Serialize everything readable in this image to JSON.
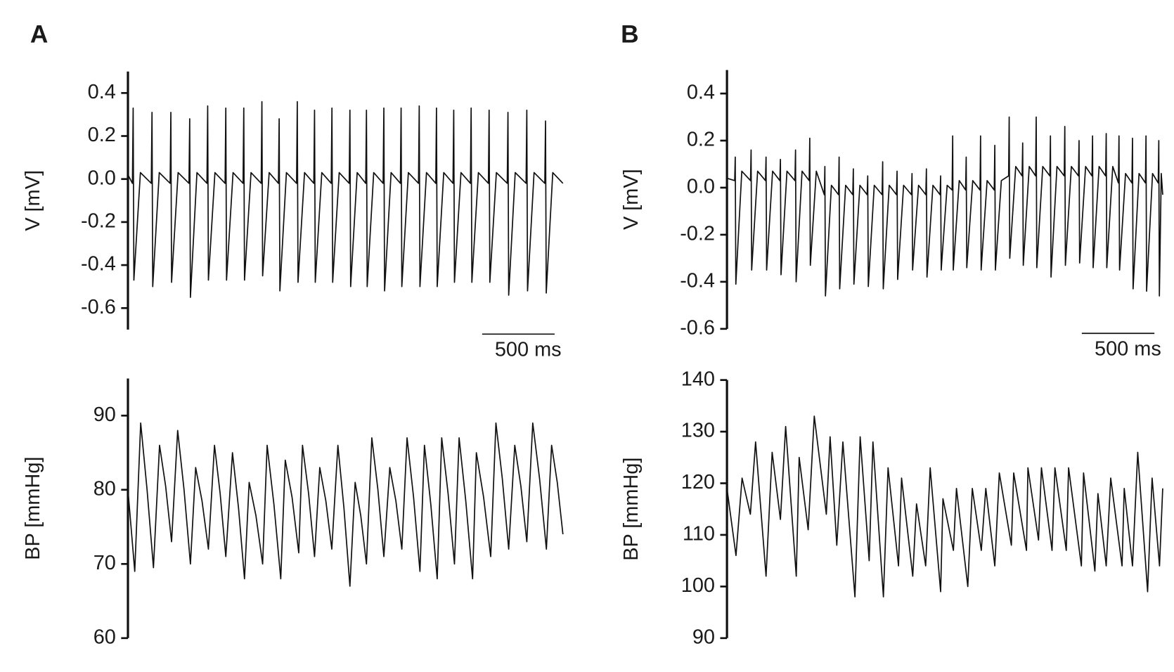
{
  "panel_labels": [
    "A",
    "B"
  ],
  "chart_data": [
    {
      "type": "line",
      "ylabel": "V [mV]",
      "ylim": [
        -0.7,
        0.5
      ],
      "yticks": [
        0.4,
        0.2,
        {
          "value": 0,
          "label": "0.0"
        },
        -0.2,
        -0.4,
        -0.6
      ],
      "xlim": [
        0,
        3000
      ],
      "scalebar": {
        "value": 500,
        "label": "500 ms"
      },
      "x": [
        0,
        31,
        36,
        41,
        86,
        161,
        166,
        171,
        216,
        291,
        296,
        301,
        346,
        421,
        426,
        431,
        476,
        545,
        550,
        555,
        600,
        670,
        675,
        680,
        725,
        794,
        799,
        804,
        849,
        919,
        924,
        929,
        974,
        1038,
        1043,
        1048,
        1093,
        1163,
        1168,
        1173,
        1218,
        1282,
        1287,
        1292,
        1337,
        1402,
        1407,
        1412,
        1457,
        1526,
        1531,
        1536,
        1581,
        1640,
        1645,
        1650,
        1695,
        1760,
        1765,
        1770,
        1815,
        1879,
        1884,
        1889,
        1934,
        2004,
        2009,
        2014,
        2059,
        2123,
        2128,
        2133,
        2178,
        2242,
        2247,
        2252,
        2297,
        2362,
        2367,
        2372,
        2417,
        2486,
        2491,
        2496,
        2541,
        2616,
        2621,
        2626,
        2671,
        2746,
        2751,
        2756,
        2801,
        2875,
        2880,
        2885,
        2930,
        3000
      ],
      "series": [
        {
          "color": "#111111",
          "values": [
            0.02,
            -0.02,
            0.33,
            -0.47,
            0.03,
            -0.02,
            0.31,
            -0.5,
            0.03,
            -0.02,
            0.31,
            -0.48,
            0.03,
            -0.02,
            0.28,
            -0.55,
            0.03,
            -0.02,
            0.34,
            -0.47,
            0.03,
            -0.02,
            0.33,
            -0.47,
            0.03,
            -0.02,
            0.33,
            -0.47,
            0.03,
            -0.02,
            0.36,
            -0.45,
            0.03,
            -0.02,
            0.28,
            -0.52,
            0.03,
            -0.02,
            0.36,
            -0.48,
            0.03,
            -0.02,
            0.32,
            -0.48,
            0.03,
            -0.02,
            0.33,
            -0.48,
            0.03,
            -0.02,
            0.32,
            -0.5,
            0.03,
            -0.02,
            0.32,
            -0.5,
            0.03,
            -0.02,
            0.33,
            -0.52,
            0.03,
            -0.02,
            0.33,
            -0.5,
            0.03,
            -0.02,
            0.34,
            -0.5,
            0.03,
            -0.02,
            0.33,
            -0.5,
            0.03,
            -0.02,
            0.32,
            -0.48,
            0.03,
            -0.02,
            0.33,
            -0.48,
            0.03,
            -0.02,
            0.32,
            -0.48,
            0.03,
            -0.02,
            0.31,
            -0.54,
            0.03,
            -0.02,
            0.32,
            -0.52,
            0.03,
            -0.02,
            0.27,
            -0.53,
            0.03,
            -0.02
          ]
        }
      ]
    },
    {
      "type": "line",
      "ylabel": "BP [mmHg]",
      "ylim": [
        60,
        95
      ],
      "yticks": [
        90,
        80,
        70,
        60
      ],
      "xlim": [
        0,
        3000
      ],
      "x": [
        0,
        47,
        88,
        132,
        176,
        218,
        260,
        301,
        343,
        387,
        431,
        467,
        511,
        555,
        597,
        636,
        675,
        721,
        763,
        804,
        836,
        883,
        929,
        960,
        1007,
        1054,
        1085,
        1132,
        1178,
        1204,
        1246,
        1287,
        1323,
        1365,
        1406,
        1448,
        1490,
        1531,
        1567,
        1606,
        1645,
        1682,
        1724,
        1765,
        1806,
        1848,
        1889,
        1925,
        1970,
        2014,
        2045,
        2089,
        2133,
        2164,
        2208,
        2252,
        2284,
        2330,
        2377,
        2403,
        2453,
        2502,
        2538,
        2582,
        2626,
        2668,
        2710,
        2751,
        2792,
        2839,
        2886,
        2922,
        2961,
        3000
      ],
      "series": [
        {
          "color": "#111111",
          "values": [
            80,
            69,
            89,
            80,
            69.5,
            86,
            80.5,
            73,
            88,
            80,
            70,
            83,
            78.5,
            72,
            86,
            79.5,
            71,
            85,
            77.5,
            68,
            81,
            76.5,
            70,
            86,
            78,
            68,
            84,
            79,
            71.5,
            86,
            79.5,
            71,
            83,
            78.5,
            72,
            86,
            77.5,
            67,
            81,
            76.5,
            70,
            87,
            80,
            71,
            83,
            78.5,
            72,
            87,
            79,
            69,
            86,
            78,
            68,
            87,
            79.5,
            70,
            87,
            78.5,
            68,
            85,
            79,
            71,
            89,
            81.5,
            72,
            86,
            80.5,
            73,
            89,
            81.5,
            72,
            86,
            81,
            74
          ]
        }
      ]
    },
    {
      "type": "line",
      "ylabel": "V [mV]",
      "ylim": [
        -0.6,
        0.5
      ],
      "yticks": [
        0.4,
        0.2,
        {
          "value": 0,
          "label": "0.0"
        },
        -0.2,
        -0.4,
        -0.6
      ],
      "xlim": [
        0,
        3000
      ],
      "scalebar": {
        "value": 500,
        "label": "500 ms"
      },
      "x": [
        0,
        53,
        57,
        61,
        102,
        162,
        166,
        170,
        211,
        265,
        269,
        273,
        314,
        364,
        368,
        372,
        413,
        468,
        472,
        476,
        517,
        566,
        570,
        574,
        615,
        670,
        674,
        678,
        719,
        768,
        772,
        776,
        817,
        866,
        870,
        874,
        915,
        965,
        969,
        973,
        1014,
        1068,
        1072,
        1076,
        1117,
        1167,
        1171,
        1175,
        1216,
        1270,
        1274,
        1278,
        1319,
        1369,
        1373,
        1377,
        1418,
        1467,
        1471,
        1475,
        1516,
        1550,
        1554,
        1558,
        1599,
        1643,
        1647,
        1651,
        1692,
        1742,
        1746,
        1750,
        1791,
        1840,
        1844,
        1848,
        1889,
        1939,
        1943,
        1947,
        1988,
        2032,
        2036,
        2040,
        2081,
        2125,
        2129,
        2133,
        2174,
        2223,
        2227,
        2231,
        2272,
        2322,
        2326,
        2330,
        2371,
        2420,
        2424,
        2428,
        2469,
        2513,
        2517,
        2521,
        2562,
        2607,
        2611,
        2615,
        2656,
        2695,
        2699,
        2703,
        2744,
        2788,
        2792,
        2796,
        2837,
        2881,
        2885,
        2889,
        2930,
        2969,
        2973,
        2977,
        2990,
        3000
      ],
      "series": [
        {
          "color": "#111111",
          "values": [
            0.04,
            0.03,
            0.13,
            -0.41,
            0.07,
            0.03,
            0.16,
            -0.35,
            0.07,
            0.03,
            0.13,
            -0.35,
            0.07,
            0.03,
            0.12,
            -0.37,
            0.07,
            0.03,
            0.16,
            -0.4,
            0.07,
            0.03,
            0.21,
            -0.33,
            0.07,
            -0.03,
            0.09,
            -0.46,
            0.01,
            -0.03,
            0.13,
            -0.43,
            0.01,
            -0.03,
            0.08,
            -0.41,
            0.01,
            -0.03,
            0.05,
            -0.42,
            0.01,
            -0.03,
            0.11,
            -0.43,
            0.01,
            -0.03,
            0.07,
            -0.39,
            0.01,
            -0.03,
            0.06,
            -0.35,
            0.01,
            -0.03,
            0.08,
            -0.38,
            0.01,
            -0.03,
            0.05,
            -0.35,
            0.01,
            -0.01,
            0.22,
            -0.35,
            0.03,
            -0.01,
            0.13,
            -0.34,
            0.03,
            -0.01,
            0.22,
            -0.35,
            0.03,
            -0.01,
            0.18,
            -0.35,
            0.03,
            0.05,
            0.3,
            -0.3,
            0.09,
            0.05,
            0.19,
            -0.33,
            0.09,
            0.05,
            0.3,
            -0.34,
            0.09,
            0.05,
            0.22,
            -0.38,
            0.09,
            0.05,
            0.26,
            -0.33,
            0.09,
            0.05,
            0.2,
            -0.32,
            0.09,
            0.05,
            0.22,
            -0.34,
            0.09,
            0.05,
            0.23,
            -0.34,
            0.09,
            0.02,
            0.22,
            -0.35,
            0.06,
            0.02,
            0.21,
            -0.43,
            0.06,
            0.02,
            0.22,
            -0.44,
            0.06,
            0.02,
            0.2,
            -0.46,
            0.06,
            -0.03
          ]
        }
      ]
    },
    {
      "type": "line",
      "ylabel": "BP [mmHg]",
      "ylim": [
        90,
        140
      ],
      "yticks": [
        140,
        130,
        120,
        110,
        100,
        90
      ],
      "xlim": [
        0,
        3000
      ],
      "x": [
        0,
        62,
        104,
        161,
        197,
        269,
        311,
        368,
        404,
        477,
        497,
        559,
        601,
        684,
        710,
        756,
        798,
        881,
        917,
        979,
        1005,
        1077,
        1109,
        1181,
        1202,
        1279,
        1305,
        1368,
        1399,
        1471,
        1487,
        1559,
        1580,
        1658,
        1689,
        1751,
        1782,
        1844,
        1875,
        1958,
        1974,
        2062,
        2072,
        2145,
        2165,
        2238,
        2258,
        2336,
        2352,
        2440,
        2455,
        2533,
        2554,
        2611,
        2642,
        2720,
        2735,
        2792,
        2828,
        2896,
        2927,
        2978,
        3000
      ],
      "series": [
        {
          "color": "#111111",
          "values": [
            119,
            106,
            121,
            114,
            128,
            102,
            126,
            113,
            131,
            102,
            125,
            111,
            133,
            114,
            129,
            108,
            128,
            98,
            129,
            105,
            128,
            98,
            123,
            104,
            121,
            102,
            116,
            104,
            123,
            99,
            117,
            107,
            119,
            100,
            119,
            107,
            119,
            104,
            122,
            108,
            122,
            107,
            123,
            109,
            123,
            107,
            123,
            107,
            123,
            104,
            122,
            103,
            118,
            104,
            121,
            104,
            119,
            104,
            126,
            99,
            121,
            104,
            119
          ]
        }
      ]
    }
  ]
}
